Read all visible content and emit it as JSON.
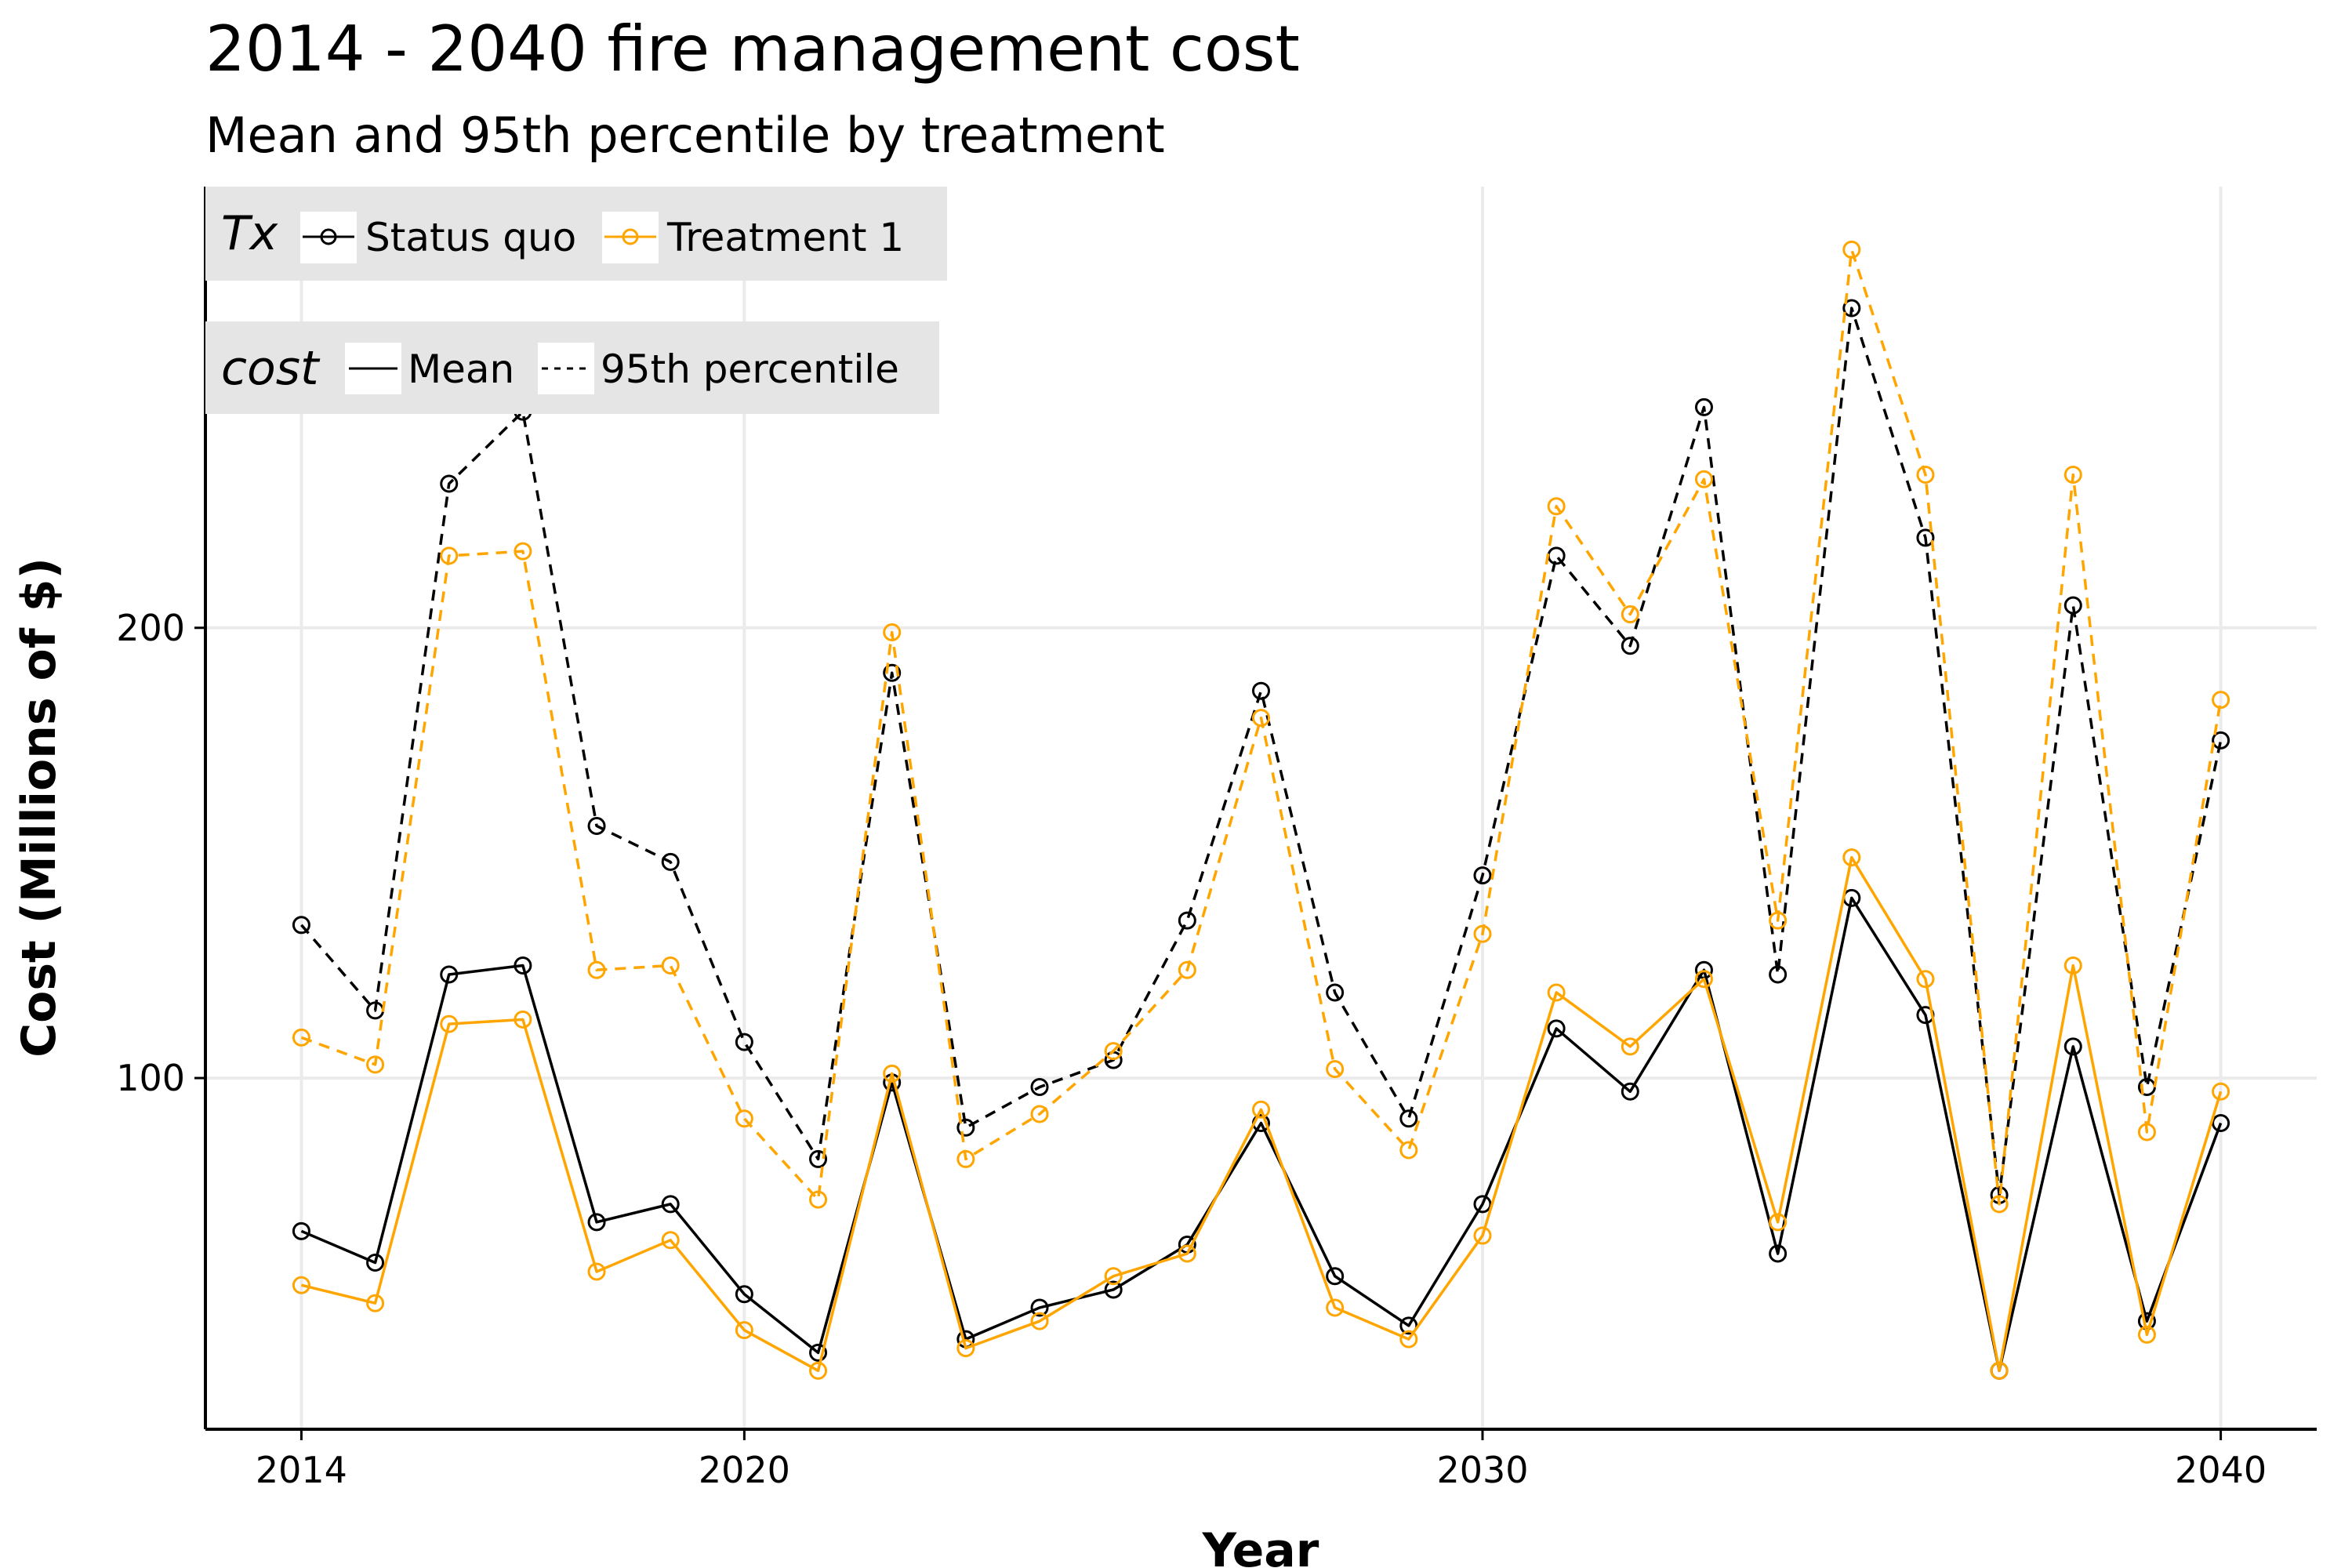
{
  "chart_data": {
    "type": "line",
    "title": "2014 - 2040 fire management cost",
    "subtitle": "Mean and 95th percentile by treatment",
    "xlabel": "Year",
    "ylabel": "Cost (Millions of $)",
    "xlim": [
      2012.7,
      2041.3
    ],
    "ylim": [
      22,
      298
    ],
    "x_ticks": [
      2014,
      2020,
      2030,
      2040
    ],
    "y_ticks": [
      100,
      200
    ],
    "grid": true,
    "legend_position": "top-left",
    "legends": [
      {
        "title": "Tx",
        "entries": [
          {
            "label": "Status quo",
            "color": "#000000"
          },
          {
            "label": "Treatment 1",
            "color": "#ffa500"
          }
        ]
      },
      {
        "title": "cost",
        "entries": [
          {
            "label": "Mean",
            "linestyle": "solid"
          },
          {
            "label": "95th percentile",
            "linestyle": "dashed"
          }
        ]
      }
    ],
    "x": [
      2014,
      2015,
      2016,
      2017,
      2018,
      2019,
      2020,
      2021,
      2022,
      2023,
      2024,
      2025,
      2026,
      2027,
      2028,
      2029,
      2030,
      2031,
      2032,
      2033,
      2034,
      2035,
      2036,
      2037,
      2038,
      2039,
      2040
    ],
    "series": [
      {
        "tx": "Status quo",
        "cost": "Mean",
        "color": "#000000",
        "dash": false,
        "values": [
          66,
          59,
          123,
          125,
          68,
          72,
          52,
          39,
          99,
          42,
          49,
          53,
          63,
          90,
          56,
          45,
          72,
          111,
          97,
          124,
          61,
          140,
          114,
          35,
          107,
          46,
          90
        ]
      },
      {
        "tx": "Treatment 1",
        "cost": "Mean",
        "color": "#ffa500",
        "dash": false,
        "values": [
          54,
          50,
          112,
          113,
          57,
          64,
          44,
          35,
          101,
          40,
          46,
          56,
          61,
          93,
          49,
          42,
          65,
          119,
          107,
          122,
          68,
          149,
          122,
          35,
          125,
          43,
          97
        ]
      },
      {
        "tx": "Status quo",
        "cost": "95th percentile",
        "color": "#000000",
        "dash": true,
        "values": [
          134,
          115,
          232,
          248,
          156,
          148,
          108,
          82,
          190,
          89,
          98,
          104,
          135,
          186,
          119,
          91,
          145,
          216,
          196,
          249,
          123,
          271,
          220,
          74,
          205,
          98,
          175
        ]
      },
      {
        "tx": "Treatment 1",
        "cost": "95th percentile",
        "color": "#ffa500",
        "dash": true,
        "values": [
          109,
          103,
          216,
          217,
          124,
          125,
          91,
          73,
          199,
          82,
          92,
          106,
          124,
          180,
          102,
          84,
          132,
          227,
          203,
          233,
          135,
          284,
          234,
          72,
          234,
          88,
          184
        ]
      }
    ]
  }
}
